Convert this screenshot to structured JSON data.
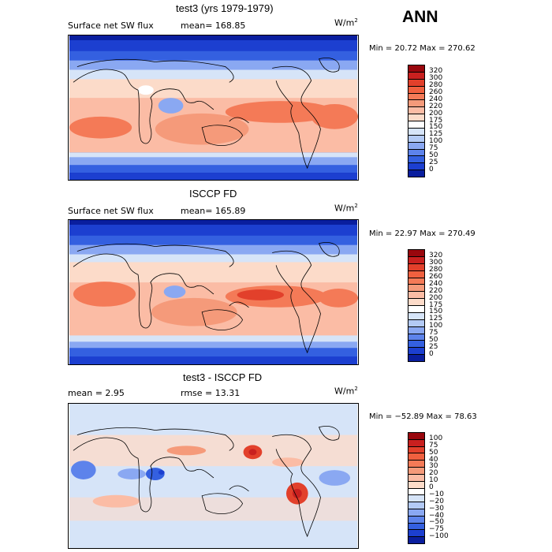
{
  "header": {
    "season": "ANN"
  },
  "panels": [
    {
      "title": "test3 (yrs 1979-1979)",
      "variable": "Surface net SW flux",
      "stat_left": "mean= 168.85",
      "units": "W/m",
      "units_exp": "2",
      "minmax": "Min =  20.72 Max = 270.62",
      "colorbar": {
        "labels": [
          "320",
          "300",
          "280",
          "260",
          "240",
          "220",
          "200",
          "175",
          "150",
          "125",
          "100",
          "75",
          "50",
          "25",
          "0"
        ],
        "colors": [
          "#99070d",
          "#c9201f",
          "#e2402b",
          "#f0603f",
          "#f47a57",
          "#f59a7a",
          "#fbbca5",
          "#fcdbc9",
          "#ffffff",
          "#d6e4f8",
          "#b3caf5",
          "#8aa8f2",
          "#5d83eb",
          "#3460e0",
          "#1c3fd0",
          "#0a1e9e"
        ]
      }
    },
    {
      "title": "ISCCP FD",
      "variable": "Surface net SW flux",
      "stat_left": "mean= 165.89",
      "units": "W/m",
      "units_exp": "2",
      "minmax": "Min =  22.97 Max = 270.49",
      "colorbar": {
        "labels": [
          "320",
          "300",
          "280",
          "260",
          "240",
          "220",
          "200",
          "175",
          "150",
          "125",
          "100",
          "75",
          "50",
          "25",
          "0"
        ],
        "colors": [
          "#99070d",
          "#c9201f",
          "#e2402b",
          "#f0603f",
          "#f47a57",
          "#f59a7a",
          "#fbbca5",
          "#fcdbc9",
          "#ffffff",
          "#d6e4f8",
          "#b3caf5",
          "#8aa8f2",
          "#5d83eb",
          "#3460e0",
          "#1c3fd0",
          "#0a1e9e"
        ]
      }
    },
    {
      "title": "test3 - ISCCP FD",
      "stat_left": "mean =   2.95",
      "stat_mid": "rmse =  13.31",
      "units": "W/m",
      "units_exp": "2",
      "minmax": "Min = −52.89 Max =  78.63",
      "colorbar": {
        "labels": [
          "100",
          "75",
          "50",
          "40",
          "30",
          "20",
          "10",
          "0",
          "−10",
          "−20",
          "−30",
          "−40",
          "−50",
          "−75",
          "−100"
        ],
        "colors": [
          "#99070d",
          "#c9201f",
          "#e2402b",
          "#f0603f",
          "#f47a57",
          "#f59a7a",
          "#fbbca5",
          "#fcdbc9",
          "#ffffff",
          "#d6e4f8",
          "#b3caf5",
          "#8aa8f2",
          "#5d83eb",
          "#3460e0",
          "#1c3fd0",
          "#0a1e9e"
        ]
      }
    }
  ]
}
